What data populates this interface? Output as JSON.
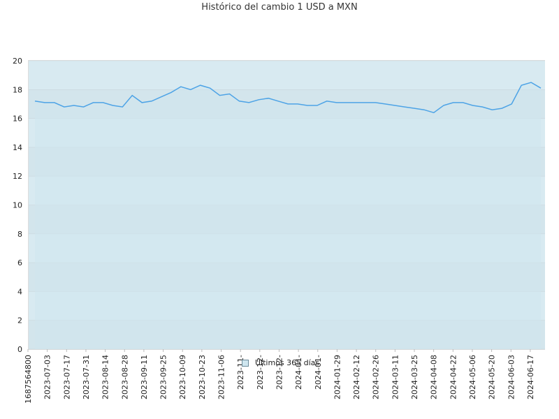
{
  "chart_title": "Histórico del cambio 1 USD a MXN",
  "chart_data": {
    "type": "area",
    "title": "Histórico del cambio 1 USD a MXN",
    "xlabel": "",
    "ylabel": "",
    "ylim": [
      0,
      20
    ],
    "y_ticks": [
      "0",
      "2",
      "4",
      "6",
      "8",
      "10",
      "12",
      "14",
      "16",
      "18",
      "20"
    ],
    "x_tick_labels": [
      "1687564800",
      "2023-07-03",
      "2023-07-17",
      "2023-07-31",
      "2023-08-14",
      "2023-08-28",
      "2023-09-11",
      "2023-09-25",
      "2023-10-09",
      "2023-10-23",
      "2023-11-06",
      "2023-11-",
      "2023-12-",
      "2023-12-",
      "2024-01-",
      "2024-01-",
      "2024-01-29",
      "2024-02-12",
      "2024-02-26",
      "2024-03-11",
      "2024-03-25",
      "2024-04-08",
      "2024-04-22",
      "2024-05-06",
      "2024-05-20",
      "2024-06-03",
      "2024-06-17"
    ],
    "grid": true,
    "legend_position": "bottom-center",
    "colors": {
      "line": "#4da3e6",
      "fill": "#cfe6ef",
      "band_dark": "#d3e5ec",
      "band_light": "#d8eaf1",
      "plot_top": "#f2f2f2"
    },
    "series": [
      {
        "name": "Últimos 365 días",
        "x": [
          "2023-06-24",
          "2023-07-01",
          "2023-07-08",
          "2023-07-15",
          "2023-07-22",
          "2023-07-29",
          "2023-08-05",
          "2023-08-12",
          "2023-08-19",
          "2023-08-26",
          "2023-09-02",
          "2023-09-09",
          "2023-09-16",
          "2023-09-23",
          "2023-09-30",
          "2023-10-07",
          "2023-10-14",
          "2023-10-21",
          "2023-10-28",
          "2023-11-04",
          "2023-11-11",
          "2023-11-18",
          "2023-11-25",
          "2023-12-02",
          "2023-12-09",
          "2023-12-16",
          "2023-12-23",
          "2023-12-30",
          "2024-01-06",
          "2024-01-13",
          "2024-01-20",
          "2024-01-27",
          "2024-02-03",
          "2024-02-10",
          "2024-02-17",
          "2024-02-24",
          "2024-03-02",
          "2024-03-09",
          "2024-03-16",
          "2024-03-23",
          "2024-03-30",
          "2024-04-06",
          "2024-04-13",
          "2024-04-20",
          "2024-04-27",
          "2024-05-04",
          "2024-05-11",
          "2024-05-18",
          "2024-05-25",
          "2024-06-01",
          "2024-06-08",
          "2024-06-15",
          "2024-06-22"
        ],
        "values": [
          17.2,
          17.1,
          17.1,
          16.8,
          16.9,
          16.8,
          17.1,
          17.1,
          16.9,
          16.8,
          17.6,
          17.1,
          17.2,
          17.5,
          17.8,
          18.2,
          18.0,
          18.3,
          18.1,
          17.6,
          17.7,
          17.2,
          17.1,
          17.3,
          17.4,
          17.2,
          17.0,
          17.0,
          16.9,
          16.9,
          17.2,
          17.1,
          17.1,
          17.1,
          17.1,
          17.1,
          17.0,
          16.9,
          16.8,
          16.7,
          16.6,
          16.4,
          16.9,
          17.1,
          17.1,
          16.9,
          16.8,
          16.6,
          16.7,
          17.0,
          18.3,
          18.5,
          18.1
        ]
      }
    ]
  }
}
